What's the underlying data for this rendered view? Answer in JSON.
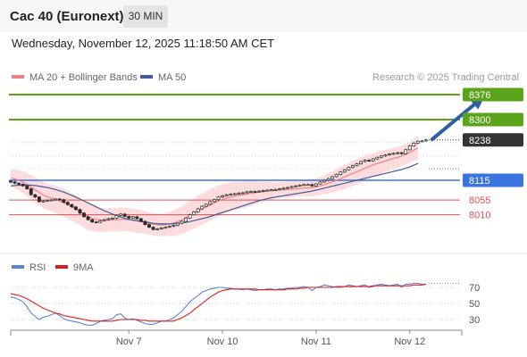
{
  "header": {
    "instrument": "Cac 40 (Euronext)",
    "interval": "30 MIN",
    "timestamp": "Wednesday, November 12, 2025 11:18:50 AM CET"
  },
  "credit": "Research © 2025 Trading Central",
  "colors": {
    "candle": "#2b2b2b",
    "ma20": "#f08080",
    "bollinger_band": "#fcd6d6",
    "ma50": "#3f5d9a",
    "resistance": "#5ba31a",
    "pivot": "#3a74e0",
    "support": "#e25050",
    "current": "#333333",
    "arrow": "#2f5fa3",
    "rsi": "#5b84d6",
    "rsi_ma": "#d81e1e"
  },
  "chart_data": [
    {
      "type": "candlestick",
      "title": "",
      "legend": [
        {
          "name": "MA 20 + Bollinger Bands",
          "color": "#f08080"
        },
        {
          "name": "MA 50",
          "color": "#3f5d9a"
        }
      ],
      "legend_position": "top-left",
      "ylim": [
        7960,
        8400
      ],
      "x_ticks": [
        {
          "label": "Nov 7",
          "index": 29
        },
        {
          "label": "Nov 10",
          "index": 52
        },
        {
          "label": "Nov 11",
          "index": 75
        },
        {
          "label": "Nov 12",
          "index": 98
        }
      ],
      "levels": [
        {
          "label": "8376",
          "value": 8376,
          "kind": "resistance"
        },
        {
          "label": "8300",
          "value": 8300,
          "kind": "resistance"
        },
        {
          "label": "8238",
          "value": 8238,
          "kind": "current"
        },
        {
          "label": "8115",
          "value": 8115,
          "kind": "pivot"
        },
        {
          "label": "8055",
          "value": 8055,
          "kind": "support"
        },
        {
          "label": "8010",
          "value": 8010,
          "kind": "support"
        }
      ],
      "arrow": {
        "from_index": 103.5,
        "from_value": 8240,
        "to_index": 116,
        "to_value": 8368
      },
      "close": [
        8110,
        8106,
        8103,
        8098,
        8089,
        8071,
        8064,
        8050,
        8052,
        8054,
        8055,
        8058,
        8056,
        8048,
        8041,
        8034,
        8026,
        8015,
        8004,
        7995,
        7988,
        7987,
        7992,
        7995,
        7998,
        8000,
        8008,
        8012,
        8005,
        8000,
        8004,
        7998,
        7990,
        7980,
        7972,
        7965,
        7967,
        7970,
        7972,
        7975,
        7978,
        7984,
        7990,
        8000,
        8010,
        8019,
        8028,
        8036,
        8042,
        8050,
        8056,
        8064,
        8068,
        8071,
        8073,
        8074,
        8076,
        8077,
        8080,
        8081,
        8080,
        8082,
        8084,
        8085,
        8086,
        8087,
        8089,
        8091,
        8093,
        8096,
        8098,
        8100,
        8102,
        8102,
        8098,
        8104,
        8110,
        8115,
        8120,
        8126,
        8133,
        8140,
        8147,
        8154,
        8160,
        8165,
        8172,
        8176,
        8174,
        8180,
        8185,
        8189,
        8192,
        8195,
        8197,
        8199,
        8196,
        8208,
        8220,
        8228,
        8234,
        8235,
        8238
      ],
      "ma20": [
        8122,
        8119,
        8115,
        8109,
        8102,
        8094,
        8086,
        8078,
        8070,
        8065,
        8061,
        8057,
        8052,
        8047,
        8041,
        8034,
        8027,
        8020,
        8012,
        8004,
        7999,
        7996,
        7994,
        7993,
        7994,
        7995,
        7995,
        7996,
        7996,
        7995,
        7993,
        7991,
        7989,
        7986,
        7983,
        7981,
        7979,
        7979,
        7980,
        7982,
        7985,
        7989,
        7994,
        8000,
        8007,
        8014,
        8021,
        8028,
        8034,
        8040,
        8046,
        8052,
        8057,
        8061,
        8064,
        8067,
        8069,
        8071,
        8073,
        8075,
        8077,
        8079,
        8080,
        8082,
        8083,
        8084,
        8085,
        8086,
        8087,
        8088,
        8089,
        8090,
        8091,
        8092,
        8093,
        8095,
        8098,
        8102,
        8106,
        8110,
        8115,
        8120,
        8125,
        8131,
        8136,
        8141,
        8146,
        8152,
        8157,
        8162,
        8166,
        8170,
        8174,
        8178,
        8182,
        8185,
        8189,
        8194,
        8200,
        8207,
        8214
      ],
      "bollinger_upper": [
        8148,
        8148,
        8146,
        8142,
        8137,
        8131,
        8124,
        8117,
        8110,
        8105,
        8101,
        8098,
        8094,
        8089,
        8083,
        8076,
        8069,
        8061,
        8053,
        8045,
        8038,
        8034,
        8031,
        8029,
        8029,
        8030,
        8031,
        8032,
        8032,
        8031,
        8029,
        8027,
        8024,
        8021,
        8017,
        8015,
        8013,
        8013,
        8015,
        8019,
        8024,
        8029,
        8036,
        8044,
        8052,
        8060,
        8068,
        8076,
        8082,
        8088,
        8094,
        8099,
        8103,
        8106,
        8108,
        8110,
        8111,
        8112,
        8113,
        8113,
        8113,
        8112,
        8111,
        8110,
        8110,
        8109,
        8109,
        8110,
        8111,
        8112,
        8113,
        8114,
        8116,
        8118,
        8120,
        8122,
        8126,
        8131,
        8137,
        8143,
        8149,
        8156,
        8162,
        8168,
        8174,
        8180,
        8185,
        8190,
        8194,
        8198,
        8202,
        8205,
        8208,
        8211,
        8214,
        8217,
        8220,
        8225,
        8232,
        8240,
        8250
      ],
      "bollinger_lower": [
        8096,
        8090,
        8084,
        8076,
        8067,
        8057,
        8048,
        8039,
        8030,
        8025,
        8021,
        8016,
        8010,
        8005,
        7999,
        7992,
        7985,
        7979,
        7971,
        7963,
        7960,
        7958,
        7957,
        7957,
        7959,
        7960,
        7959,
        7960,
        7960,
        7959,
        7957,
        7955,
        7954,
        7951,
        7949,
        7947,
        7945,
        7945,
        7945,
        7945,
        7946,
        7949,
        7952,
        7956,
        7962,
        7968,
        7974,
        7980,
        7986,
        7992,
        7998,
        8005,
        8011,
        8016,
        8020,
        8024,
        8027,
        8030,
        8033,
        8037,
        8041,
        8046,
        8049,
        8054,
        8056,
        8059,
        8061,
        8062,
        8063,
        8064,
        8065,
        8066,
        8066,
        8066,
        8066,
        8068,
        8070,
        8073,
        8075,
        8077,
        8081,
        8084,
        8088,
        8094,
        8098,
        8102,
        8107,
        8114,
        8120,
        8126,
        8130,
        8135,
        8140,
        8145,
        8150,
        8153,
        8158,
        8163,
        8168,
        8174,
        8178
      ],
      "ma50": [
        8098,
        8099,
        8100,
        8100,
        8101,
        8100,
        8099,
        8097,
        8095,
        8093,
        8090,
        8087,
        8083,
        8079,
        8074,
        8069,
        8064,
        8058,
        8052,
        8046,
        8040,
        8034,
        8028,
        8022,
        8017,
        8012,
        8007,
        8003,
        7999,
        7996,
        7994,
        7992,
        7990,
        7988,
        7986,
        7984,
        7983,
        7982,
        7982,
        7982,
        7983,
        7984,
        7985,
        7987,
        7989,
        7992,
        7995,
        7998,
        8001,
        8005,
        8009,
        8013,
        8017,
        8021,
        8025,
        8029,
        8033,
        8037,
        8041,
        8045,
        8049,
        8053,
        8056,
        8059,
        8062,
        8064,
        8066,
        8068,
        8070,
        8072,
        8074,
        8076,
        8078,
        8080,
        8082,
        8085,
        8088,
        8091,
        8094,
        8097,
        8100,
        8103,
        8106,
        8109,
        8112,
        8115,
        8118,
        8121,
        8124,
        8127,
        8130,
        8133,
        8136,
        8139,
        8142,
        8145,
        8148,
        8152,
        8156,
        8161,
        8166
      ]
    },
    {
      "type": "line",
      "title": "",
      "legend": [
        {
          "name": "RSI",
          "color": "#5b84d6"
        },
        {
          "name": "9MA",
          "color": "#d81e1e"
        }
      ],
      "legend_position": "top-left",
      "ylim": [
        20,
        80
      ],
      "y_ticks": [
        70,
        50,
        30
      ],
      "rsi": [
        58,
        57,
        55,
        52,
        46,
        38,
        34,
        30,
        33,
        34,
        36,
        38,
        35,
        31,
        29,
        28,
        27,
        26,
        24,
        23,
        23,
        25,
        28,
        29,
        30,
        31,
        36,
        37,
        32,
        30,
        31,
        29,
        27,
        25,
        24,
        24,
        26,
        28,
        28,
        30,
        32,
        36,
        40,
        46,
        52,
        56,
        60,
        64,
        66,
        68,
        69,
        70,
        70,
        69,
        69,
        68,
        68,
        67,
        68,
        67,
        66,
        67,
        67,
        68,
        68,
        67,
        68,
        68,
        69,
        69,
        70,
        70,
        71,
        70,
        66,
        70,
        71,
        73,
        72,
        71,
        70,
        70,
        71,
        73,
        72,
        71,
        72,
        73,
        70,
        71,
        73,
        74,
        73,
        72,
        73,
        74,
        70,
        74,
        74,
        75,
        75,
        74,
        74
      ],
      "rsi_ma": [
        62,
        61,
        60,
        58,
        56,
        53,
        50,
        47,
        44,
        42,
        40,
        38,
        37,
        35,
        34,
        33,
        32,
        31,
        30,
        29,
        28,
        28,
        28,
        28,
        28,
        28,
        29,
        30,
        30,
        30,
        30,
        30,
        29,
        29,
        28,
        28,
        28,
        28,
        28,
        28,
        28,
        30,
        32,
        35,
        38,
        42,
        46,
        50,
        54,
        58,
        61,
        64,
        66,
        67,
        68,
        68,
        68,
        68,
        68,
        68,
        68,
        67,
        67,
        67,
        67,
        67,
        67,
        67,
        68,
        68,
        68,
        69,
        69,
        70,
        70,
        70,
        70,
        70,
        70,
        70,
        71,
        71,
        71,
        71,
        71,
        71,
        71,
        71,
        71,
        72,
        72,
        72,
        72,
        72,
        72,
        72,
        72,
        72,
        72,
        73,
        73,
        73,
        74
      ]
    }
  ]
}
